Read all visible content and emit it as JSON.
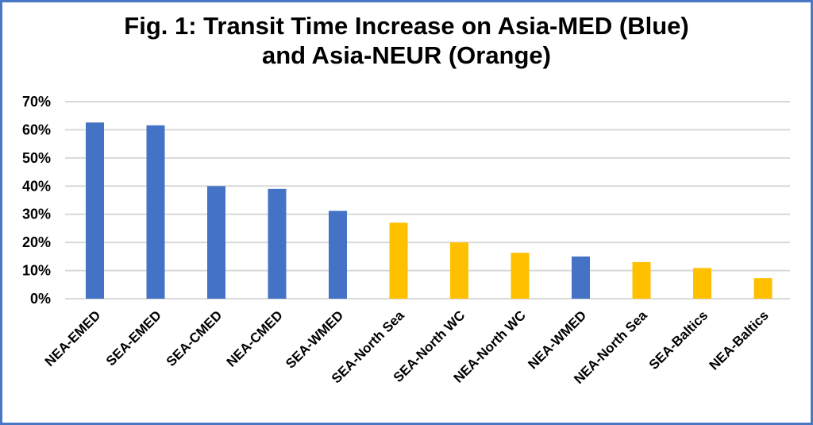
{
  "chart_data": {
    "type": "bar",
    "title_line1": "Fig. 1: Transit Time Increase on Asia-MED (Blue)",
    "title_line2": "and Asia-NEUR (Orange)",
    "xlabel": "",
    "ylabel": "",
    "ylim": [
      0,
      70
    ],
    "yticks": [
      "0%",
      "10%",
      "20%",
      "30%",
      "40%",
      "50%",
      "60%",
      "70%"
    ],
    "grid": true,
    "categories": [
      "NEA-EMED",
      "SEA-EMED",
      "SEA-CMED",
      "NEA-CMED",
      "SEA-WMED",
      "SEA-North Sea",
      "SEA-North WC",
      "NEA-North WC",
      "NEA-WMED",
      "NEA-North Sea",
      "SEA-Baltics",
      "NEA-Baltics"
    ],
    "values": [
      62.6,
      61.6,
      40.0,
      39.0,
      31.2,
      27.0,
      20.0,
      16.3,
      15.0,
      13.0,
      10.9,
      7.3
    ],
    "groups": [
      "Asia-MED",
      "Asia-MED",
      "Asia-MED",
      "Asia-MED",
      "Asia-MED",
      "Asia-NEUR",
      "Asia-NEUR",
      "Asia-NEUR",
      "Asia-MED",
      "Asia-NEUR",
      "Asia-NEUR",
      "Asia-NEUR"
    ],
    "colors": {
      "Asia-MED": "#4472c4",
      "Asia-NEUR": "#ffc000",
      "grid": "#d9d9d9",
      "frame": "#4a76c6"
    }
  }
}
